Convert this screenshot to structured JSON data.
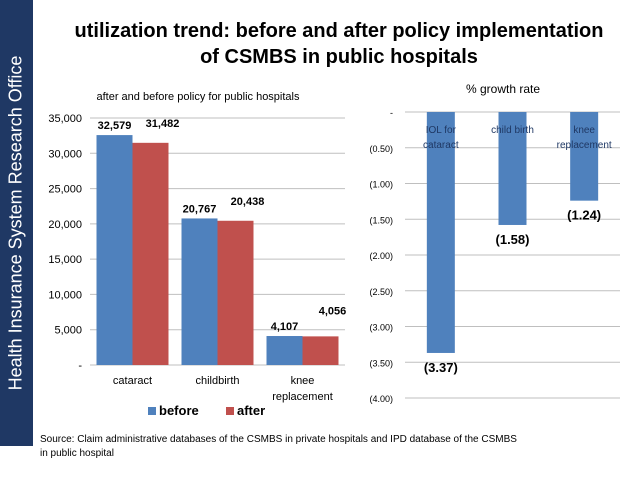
{
  "sidebar": {
    "text": "Health Insurance System Research Office"
  },
  "title": {
    "line1": "utilization trend: before and after policy implementation",
    "line2": "of CSMBS in public hospitals"
  },
  "source": {
    "line1": "Source:  Claim administrative databases of the CSMBS in private hospitals and IPD database of the CSMBS",
    "line2": "in public hospital"
  },
  "colors": {
    "sidebar": "#1f3864",
    "before": "#4f81bd",
    "after": "#c0504d",
    "axis": "#bfbfbf"
  },
  "chart_data": [
    {
      "type": "bar",
      "title": "after and before policy for public hospitals",
      "categories": [
        "cataract",
        "childbirth",
        "knee replacement"
      ],
      "series": [
        {
          "name": "before",
          "values": [
            32579,
            20767,
            4107
          ],
          "labels": [
            "32,579",
            "20,767",
            "4,107"
          ]
        },
        {
          "name": "after",
          "values": [
            31482,
            20438,
            4056
          ],
          "labels": [
            "31,482",
            "20,438",
            "4,056"
          ]
        }
      ],
      "ylim": [
        0,
        35000
      ],
      "yticks": [
        0,
        5000,
        10000,
        15000,
        20000,
        25000,
        30000,
        35000
      ],
      "ytick_labels": [
        "-",
        "5,000",
        "10,000",
        "15,000",
        "20,000",
        "25,000",
        "30,000",
        "35,000"
      ],
      "legend": [
        "before",
        "after"
      ],
      "legend_position": "bottom"
    },
    {
      "type": "bar",
      "title": "% growth rate",
      "categories": [
        "IOL for cataract",
        "child birth",
        "knee replacement"
      ],
      "values": [
        -3.37,
        -1.58,
        -1.24
      ],
      "labels": [
        "(3.37)",
        "(1.58)",
        "(1.24)"
      ],
      "ylim": [
        -4.0,
        0
      ],
      "yticks": [
        0,
        -0.5,
        -1.0,
        -1.5,
        -2.0,
        -2.5,
        -3.0,
        -3.5,
        -4.0
      ],
      "ytick_labels": [
        "-",
        "(0.50)",
        "(1.00)",
        "(1.50)",
        "(2.00)",
        "(2.50)",
        "(3.00)",
        "(3.50)",
        "(4.00)"
      ]
    }
  ]
}
